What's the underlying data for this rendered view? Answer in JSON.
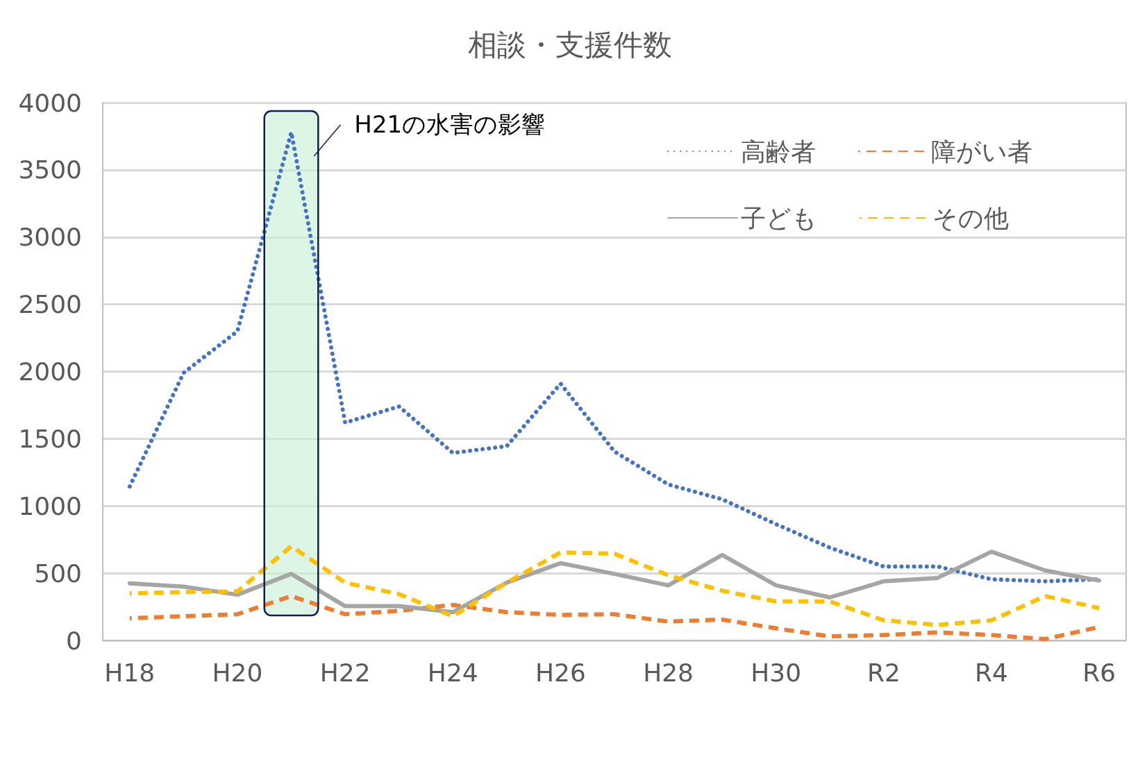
{
  "chart_data": {
    "type": "line",
    "title": "相談・支援件数",
    "categories": [
      "H18",
      null,
      "H20",
      null,
      "H22",
      null,
      "H24",
      null,
      "H26",
      null,
      "H28",
      null,
      "H30",
      null,
      "R2",
      null,
      "R4",
      null,
      "R6"
    ],
    "series": [
      {
        "name": "高齢者",
        "color": "#4472c4",
        "line_style": "dotted",
        "values": [
          1145,
          1990,
          2300,
          3780,
          1620,
          1740,
          1395,
          1445,
          1910,
          1405,
          1160,
          1050,
          865,
          690,
          550,
          550,
          455,
          440,
          455
        ]
      },
      {
        "name": "障がい者",
        "color": "#ed7d31",
        "line_style": "dashed",
        "values": [
          165,
          180,
          195,
          330,
          195,
          220,
          265,
          210,
          190,
          195,
          140,
          155,
          90,
          30,
          40,
          60,
          40,
          10,
          100
        ]
      },
      {
        "name": "子ども",
        "color": "#a5a5a5",
        "line_style": "solid",
        "values": [
          425,
          400,
          340,
          495,
          255,
          255,
          210,
          430,
          575,
          495,
          410,
          635,
          410,
          320,
          440,
          465,
          660,
          520,
          445
        ]
      },
      {
        "name": "その他",
        "color": "#ffc000",
        "line_style": "dashed",
        "values": [
          350,
          360,
          365,
          700,
          430,
          345,
          180,
          430,
          655,
          645,
          485,
          370,
          290,
          290,
          150,
          115,
          150,
          330,
          240
        ]
      }
    ],
    "bands": [
      {
        "axis": "x",
        "from": "H20",
        "to": "H22",
        "label": "H21の水害の影響",
        "color": "#c6eed4"
      }
    ],
    "ylim": [
      0,
      4000
    ],
    "yticks": [
      0,
      500,
      1000,
      1500,
      2000,
      2500,
      3000,
      3500,
      4000
    ],
    "grid": "y",
    "legend": "top right",
    "marker": "none"
  }
}
